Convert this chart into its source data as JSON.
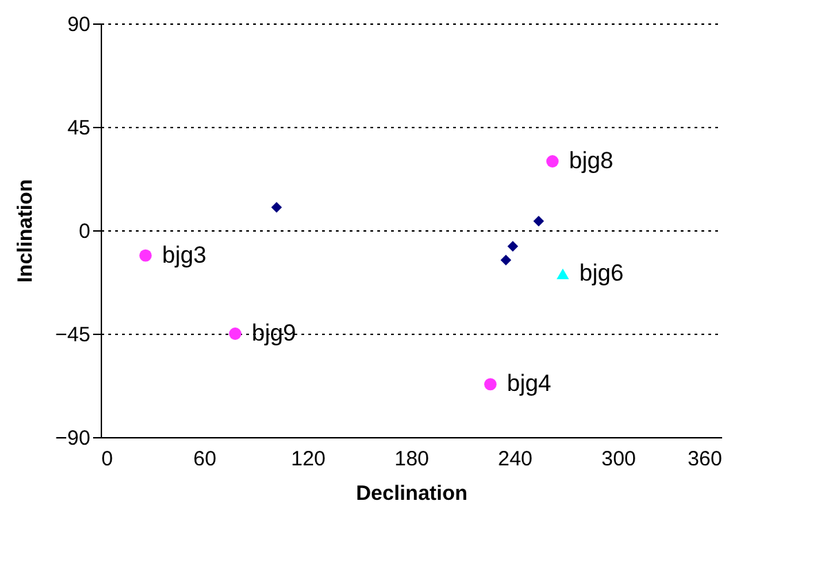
{
  "chart_data": {
    "type": "scatter",
    "xlabel": "Declination",
    "ylabel": "Inclination",
    "xlim": [
      0,
      360
    ],
    "xticks": [
      0,
      60,
      120,
      180,
      240,
      300,
      360
    ],
    "ylim": [
      -90,
      90
    ],
    "yticks": [
      -90,
      -45,
      0,
      45,
      90
    ],
    "grid": "y",
    "line_style": "dotted",
    "series": [
      {
        "color": "#000080",
        "marker": "diamond",
        "x": [
          102,
          254,
          239,
          235
        ],
        "values": [
          10,
          4,
          -7,
          -13
        ]
      },
      {
        "color": "#ff33ff",
        "marker": "circle",
        "x": [
          26,
          78,
          226,
          262
        ],
        "values": [
          -11,
          -45,
          -67,
          30
        ]
      },
      {
        "color": "#00ffff",
        "marker": "triangle",
        "x": [
          268
        ],
        "values": [
          -19
        ]
      }
    ],
    "annotations": [
      {
        "text": "bjg3",
        "x": 26,
        "y": -11
      },
      {
        "text": "bjg9",
        "x": 78,
        "y": -45
      },
      {
        "text": "bjg4",
        "x": 226,
        "y": -67
      },
      {
        "text": "bjg8",
        "x": 262,
        "y": 30
      },
      {
        "text": "bjg6",
        "x": 268,
        "y": -19
      }
    ]
  }
}
